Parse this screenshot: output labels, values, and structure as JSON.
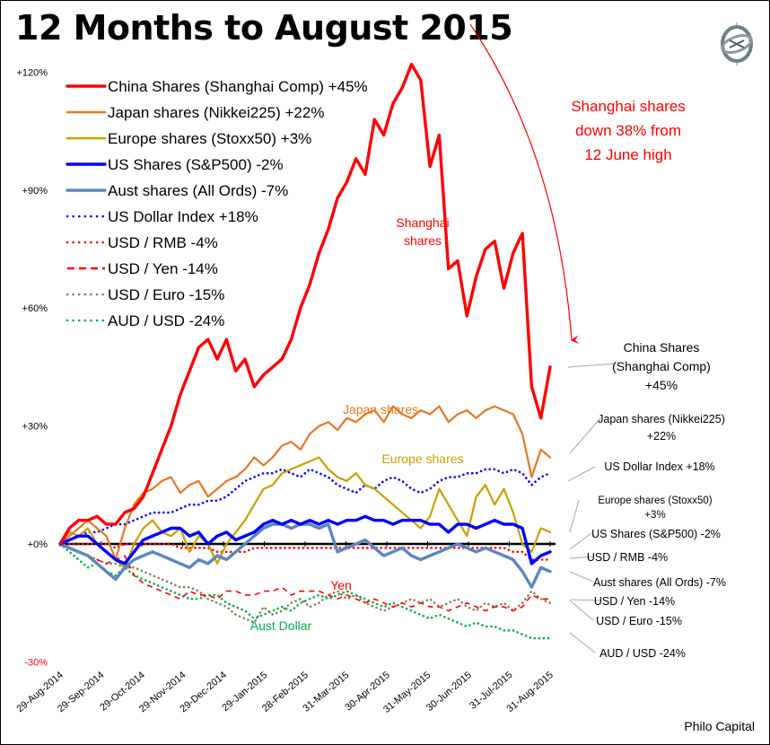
{
  "chart_data": {
    "type": "line",
    "title": "12 Months to August 2015",
    "xlabel": "",
    "ylabel": "",
    "ylim": [
      -30,
      120
    ],
    "yticks": [
      {
        "value": 120,
        "label": "+120%"
      },
      {
        "value": 90,
        "label": "+90%"
      },
      {
        "value": 60,
        "label": "+60%"
      },
      {
        "value": 30,
        "label": "+30%"
      },
      {
        "value": 0,
        "label": "+0%"
      },
      {
        "value": -30,
        "label": "-30%"
      }
    ],
    "xticks": [
      "29-Aug-2014",
      "29-Sep-2014",
      "29-Oct-2014",
      "29-Nov-2014",
      "29-Dec-2014",
      "29-Jan-2015",
      "28-Feb-2015",
      "31-Mar-2015",
      "30-Apr-2015",
      "31-May-2015",
      "30-Jun-2015",
      "31-Jul-2015",
      "31-Aug-2015"
    ],
    "grid": false,
    "legend_position": "top-left",
    "series": [
      {
        "name": "China Shares (Shanghai Comp) +45%",
        "color": "#ff0000",
        "style": "solid-thick",
        "values": [
          0,
          4,
          6,
          6,
          7,
          5,
          5,
          8,
          9,
          12,
          18,
          24,
          30,
          38,
          44,
          50,
          52,
          47,
          52,
          44,
          47,
          40,
          43,
          45,
          47,
          52,
          60,
          66,
          74,
          80,
          88,
          92,
          98,
          94,
          108,
          104,
          112,
          116,
          122,
          118,
          96,
          104,
          70,
          72,
          58,
          68,
          75,
          77,
          65,
          74,
          79,
          40,
          32,
          45
        ]
      },
      {
        "name": "Japan shares (Nikkei225) +22%",
        "color": "#e87722",
        "style": "solid",
        "values": [
          0,
          2,
          4,
          6,
          4,
          2,
          -4,
          4,
          10,
          13,
          14,
          16,
          17,
          13,
          15,
          16,
          12,
          14,
          16,
          17,
          19,
          22,
          20,
          22,
          25,
          26,
          24,
          28,
          30,
          31,
          29,
          32,
          31,
          33,
          34,
          31,
          35,
          33,
          32,
          34,
          33,
          35,
          31,
          33,
          34,
          32,
          34,
          35,
          34,
          33,
          28,
          17,
          24,
          22
        ]
      },
      {
        "name": "Europe shares (Stoxx50) +3%",
        "color": "#c9a000",
        "style": "solid",
        "values": [
          0,
          3,
          2,
          4,
          0,
          -2,
          -4,
          -6,
          0,
          4,
          6,
          3,
          2,
          4,
          -2,
          2,
          0,
          -5,
          0,
          3,
          6,
          10,
          14,
          15,
          18,
          19,
          20,
          21,
          22,
          19,
          17,
          16,
          18,
          15,
          14,
          12,
          10,
          8,
          6,
          4,
          7,
          14,
          10,
          6,
          2,
          12,
          15,
          10,
          14,
          8,
          0,
          -2,
          4,
          3
        ]
      },
      {
        "name": "US Shares (S&P500) -2%",
        "color": "#0000ff",
        "style": "solid-thick",
        "values": [
          0,
          1,
          2,
          2,
          0,
          -2,
          -4,
          -5,
          -2,
          1,
          2,
          3,
          4,
          4,
          2,
          3,
          0,
          2,
          3,
          1,
          2,
          3,
          5,
          6,
          5,
          6,
          5,
          6,
          5,
          6,
          5,
          6,
          6,
          7,
          6,
          6,
          5,
          6,
          6,
          6,
          5,
          5,
          3,
          5,
          5,
          4,
          5,
          6,
          5,
          5,
          4,
          -5,
          -3,
          -2
        ]
      },
      {
        "name": "Aust shares (All Ords) -7%",
        "color": "#5b86c0",
        "style": "solid-thick",
        "values": [
          0,
          -1,
          -2,
          -3,
          -5,
          -7,
          -9,
          -6,
          -4,
          -3,
          -2,
          -3,
          -4,
          -5,
          -6,
          -4,
          -5,
          -3,
          -4,
          -2,
          0,
          2,
          4,
          5,
          5,
          4,
          5,
          5,
          4,
          5,
          -2,
          -1,
          0,
          1,
          -1,
          -3,
          -2,
          -1,
          -3,
          -4,
          -3,
          -2,
          -1,
          0,
          -1,
          -2,
          -1,
          -2,
          -3,
          -4,
          -7,
          -11,
          -6,
          -7
        ]
      },
      {
        "name": "US Dollar Index +18%",
        "color": "#0000ff",
        "style": "dotted",
        "values": [
          0,
          1,
          2,
          3,
          3,
          4,
          5,
          5,
          6,
          7,
          8,
          8,
          8,
          9,
          10,
          10,
          11,
          11,
          12,
          14,
          16,
          17,
          18,
          18,
          19,
          18,
          17,
          19,
          18,
          17,
          15,
          14,
          13,
          15,
          14,
          16,
          17,
          16,
          14,
          13,
          14,
          16,
          17,
          17,
          18,
          18,
          19,
          19,
          18,
          19,
          18,
          15,
          17,
          18
        ]
      },
      {
        "name": "USD / RMB -4%",
        "color": "#ff0000",
        "style": "dotted",
        "values": [
          0,
          0,
          0,
          0,
          0,
          0,
          -1,
          0,
          0,
          0,
          0,
          0,
          0,
          -1,
          -1,
          -1,
          -1,
          -2,
          -2,
          -2,
          -2,
          -1,
          -1,
          -1,
          -1,
          -1,
          -1,
          -1,
          -1,
          -1,
          -1,
          -1,
          -1,
          -1,
          -1,
          -1,
          -1,
          -1,
          -1,
          -1,
          -1,
          -1,
          -1,
          -1,
          -1,
          -1,
          -1,
          -1,
          -1,
          -2,
          -2,
          -4,
          -4,
          -4
        ]
      },
      {
        "name": "USD / Yen -14%",
        "color": "#ff0000",
        "style": "dashed",
        "values": [
          0,
          -1,
          -2,
          -3,
          -4,
          -5,
          -4,
          -3,
          -8,
          -10,
          -11,
          -12,
          -13,
          -14,
          -12,
          -13,
          -13,
          -14,
          -12,
          -12,
          -13,
          -13,
          -12,
          -12,
          -11,
          -13,
          -12,
          -12,
          -12,
          -13,
          -14,
          -13,
          -14,
          -15,
          -14,
          -15,
          -16,
          -15,
          -16,
          -15,
          -16,
          -16,
          -17,
          -16,
          -15,
          -16,
          -17,
          -16,
          -16,
          -17,
          -16,
          -13,
          -14,
          -14
        ]
      },
      {
        "name": "USD / Euro -15%",
        "color": "#8b8058",
        "style": "dotted",
        "values": [
          0,
          -1,
          -2,
          -3,
          -4,
          -5,
          -5,
          -6,
          -6,
          -7,
          -8,
          -9,
          -10,
          -11,
          -11,
          -12,
          -14,
          -15,
          -16,
          -18,
          -19,
          -20,
          -16,
          -18,
          -17,
          -15,
          -14,
          -16,
          -15,
          -13,
          -12,
          -14,
          -13,
          -15,
          -16,
          -17,
          -16,
          -15,
          -14,
          -15,
          -14,
          -16,
          -15,
          -14,
          -16,
          -17,
          -15,
          -16,
          -15,
          -17,
          -15,
          -12,
          -14,
          -15
        ]
      },
      {
        "name": "AUD / USD -24%",
        "color": "#00b050",
        "style": "dotted",
        "values": [
          0,
          -2,
          -4,
          -6,
          -5,
          -7,
          -8,
          -6,
          -8,
          -9,
          -10,
          -11,
          -12,
          -13,
          -14,
          -14,
          -13,
          -13,
          -15,
          -16,
          -17,
          -19,
          -18,
          -17,
          -16,
          -17,
          -15,
          -14,
          -13,
          -14,
          -13,
          -12,
          -13,
          -14,
          -15,
          -16,
          -15,
          -16,
          -17,
          -18,
          -19,
          -18,
          -19,
          -20,
          -21,
          -20,
          -21,
          -21,
          -22,
          -22,
          -23,
          -24,
          -24,
          -24
        ]
      }
    ],
    "annotations": {
      "callout": [
        "Shanghai shares",
        "down 38% from",
        "12 June high"
      ],
      "inline_labels": [
        {
          "text": [
            "Shanghai",
            "shares"
          ],
          "color": "#ff0000"
        },
        {
          "text": [
            "Japan shares"
          ],
          "color": "#e87722"
        },
        {
          "text": [
            "Europe shares"
          ],
          "color": "#c9a000"
        },
        {
          "text": [
            "Yen"
          ],
          "color": "#ff0000"
        },
        {
          "text": [
            "Aust Dollar"
          ],
          "color": "#00b050"
        }
      ],
      "end_labels": [
        {
          "text": [
            "China Shares",
            "(Shanghai Comp)",
            "+45%"
          ]
        },
        {
          "text": [
            "Japan shares (Nikkei225)",
            "+22%"
          ]
        },
        {
          "text": [
            "US Dollar Index +18%"
          ]
        },
        {
          "text": [
            "Europe shares (Stoxx50)",
            "+3%"
          ]
        },
        {
          "text": [
            "US Shares (S&P500) -2%"
          ]
        },
        {
          "text": [
            "USD / RMB -4%"
          ]
        },
        {
          "text": [
            "Aust shares (All Ords) -7%"
          ]
        },
        {
          "text": [
            "USD / Yen -14%"
          ]
        },
        {
          "text": [
            "USD / Euro -15%"
          ]
        },
        {
          "text": [
            "AUD / USD -24%"
          ]
        }
      ]
    }
  },
  "credit": "Philo Capital",
  "logo_icon": "gyroscope-logo-icon"
}
